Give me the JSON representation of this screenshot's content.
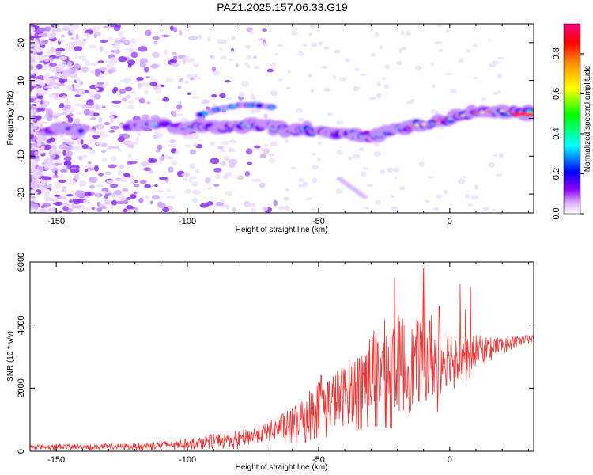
{
  "title": "PAZ1.2025.157.06.33.G19",
  "chart_data": [
    {
      "type": "heatmap",
      "xlabel": "Height of straight line (km)",
      "ylabel": "Frequency (Hz)",
      "xlim": [
        -160,
        32
      ],
      "ylim": [
        -25,
        25
      ],
      "x_ticks": [
        "-150",
        "-100",
        "-50",
        "0"
      ],
      "y_ticks": [
        "-20",
        "-10",
        "0",
        "10",
        "20"
      ],
      "ridge": {
        "x": [
          -150,
          -140,
          -130,
          -120,
          -110,
          -100,
          -90,
          -80,
          -70,
          -60,
          -50,
          -40,
          -30,
          -20,
          -10,
          0,
          10,
          20,
          32
        ],
        "freq": [
          -3,
          -3.5,
          -4,
          -2,
          -2,
          -2,
          -2.5,
          -2,
          -2,
          -3,
          -3.5,
          -4,
          -5,
          -3,
          -1.5,
          0,
          1.5,
          2,
          1
        ]
      },
      "secondary_track": {
        "x": [
          -95,
          -88,
          -80,
          -74,
          -68
        ],
        "freq": [
          1,
          2.5,
          3.5,
          3.5,
          3
        ]
      },
      "colorbar": {
        "label": "Normalized spectral amplitude",
        "range": [
          0.0,
          0.95
        ],
        "ticks": [
          "0.0",
          "0.2",
          "0.4",
          "0.6",
          "0.8"
        ],
        "colors": [
          "#ffffff",
          "#8800ff",
          "#0000ff",
          "#00ffff",
          "#00ff00",
          "#ffff00",
          "#ff0000",
          "#ff0080"
        ]
      }
    },
    {
      "type": "line",
      "xlabel": "Height of straight line (km)",
      "ylabel": "SNR (10 * v/v)",
      "xlim": [
        -160,
        32
      ],
      "ylim": [
        0,
        6000
      ],
      "x_ticks": [
        "-150",
        "-100",
        "-50",
        "0"
      ],
      "y_ticks": [
        "0",
        "2000",
        "4000",
        "6000"
      ],
      "color": "#ee3333",
      "envelope": {
        "x": [
          -160,
          -140,
          -120,
          -100,
          -90,
          -80,
          -70,
          -60,
          -55,
          -50,
          -45,
          -40,
          -35,
          -30,
          -25,
          -20,
          -15,
          -10,
          -5,
          0,
          5,
          10,
          15,
          20,
          25,
          32
        ],
        "mean": [
          150,
          150,
          150,
          250,
          350,
          400,
          600,
          900,
          1200,
          1500,
          1600,
          1800,
          2100,
          2500,
          2700,
          2800,
          2600,
          3000,
          2900,
          3100,
          3000,
          3200,
          3300,
          3400,
          3500,
          3600
        ],
        "spread": [
          80,
          80,
          100,
          150,
          200,
          250,
          300,
          500,
          700,
          800,
          900,
          1000,
          1100,
          1300,
          1500,
          1600,
          1400,
          1400,
          1300,
          900,
          700,
          500,
          350,
          250,
          150,
          100
        ]
      },
      "peaks": [
        {
          "x": -49,
          "y": 2400
        },
        {
          "x": -21,
          "y": 5500
        },
        {
          "x": -18,
          "y": 4200
        },
        {
          "x": -10,
          "y": 5800
        },
        {
          "x": -9.5,
          "y": 6000
        },
        {
          "x": -7,
          "y": 4300
        },
        {
          "x": -4,
          "y": 4600
        },
        {
          "x": 4,
          "y": 5300
        },
        {
          "x": 6,
          "y": 4500
        },
        {
          "x": 8,
          "y": 5200
        }
      ]
    }
  ]
}
